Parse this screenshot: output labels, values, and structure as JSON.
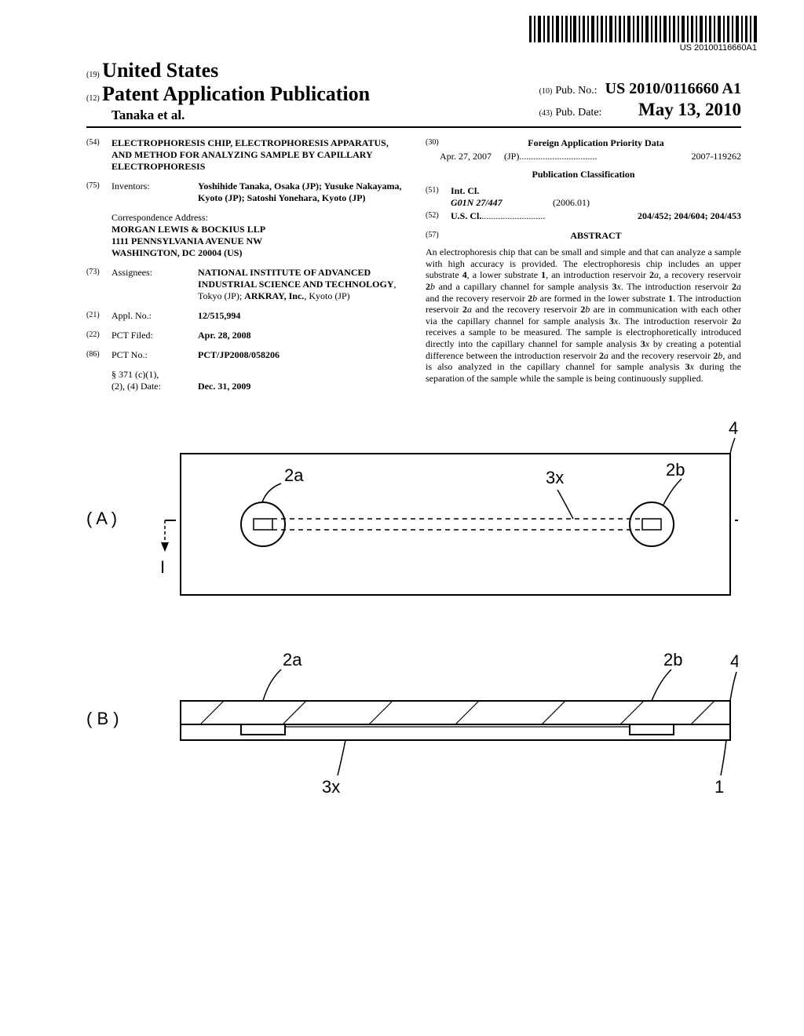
{
  "barcode_text": "US 20100116660A1",
  "header": {
    "country_tag": "(19)",
    "country": "United States",
    "pub_tag": "(12)",
    "pub_title": "Patent Application Publication",
    "authors": "Tanaka et al.",
    "pubno_tag": "(10)",
    "pubno_label": "Pub. No.:",
    "pubno_value": "US 2010/0116660 A1",
    "pubdate_tag": "(43)",
    "pubdate_label": "Pub. Date:",
    "pubdate_value": "May 13, 2010"
  },
  "left": {
    "title_tag": "(54)",
    "title": "ELECTROPHORESIS CHIP, ELECTROPHORESIS APPARATUS, AND METHOD FOR ANALYZING SAMPLE BY CAPILLARY ELECTROPHORESIS",
    "inventors_tag": "(75)",
    "inventors_label": "Inventors:",
    "inventors_value": "Yoshihide Tanaka, Osaka (JP); Yusuke Nakayama, Kyoto (JP); Satoshi Yonehara, Kyoto (JP)",
    "corr_label": "Correspondence Address:",
    "corr_lines": [
      "MORGAN LEWIS & BOCKIUS LLP",
      "1111 PENNSYLVANIA AVENUE NW",
      "WASHINGTON, DC 20004 (US)"
    ],
    "assignees_tag": "(73)",
    "assignees_label": "Assignees:",
    "assignees_html": "NATIONAL INSTITUTE OF ADVANCED INDUSTRIAL SCIENCE AND TECHNOLOGY, Tokyo (JP); ARKRAY, Inc., Kyoto (JP)",
    "applno_tag": "(21)",
    "applno_label": "Appl. No.:",
    "applno_value": "12/515,994",
    "pctfiled_tag": "(22)",
    "pctfiled_label": "PCT Filed:",
    "pctfiled_value": "Apr. 28, 2008",
    "pctno_tag": "(86)",
    "pctno_label": "PCT No.:",
    "pctno_value": "PCT/JP2008/058206",
    "sec371_label": "§ 371 (c)(1),\n(2), (4) Date:",
    "sec371_value": "Dec. 31, 2009"
  },
  "right": {
    "foreign_tag": "(30)",
    "foreign_heading": "Foreign Application Priority Data",
    "foreign_date": "Apr. 27, 2007",
    "foreign_country": "(JP)",
    "foreign_num": "2007-119262",
    "pubclass_heading": "Publication Classification",
    "intcl_tag": "(51)",
    "intcl_label": "Int. Cl.",
    "intcl_code": "G01N 27/447",
    "intcl_date": "(2006.01)",
    "uscl_tag": "(52)",
    "uscl_label": "U.S. Cl.",
    "uscl_value": "204/452; 204/604; 204/453",
    "abstract_tag": "(57)",
    "abstract_heading": "ABSTRACT",
    "abstract_text": "An electrophoresis chip that can be small and simple and that can analyze a sample with high accuracy is provided. The electrophoresis chip includes an upper substrate 4, a lower substrate 1, an introduction reservoir 2a, a recovery reservoir 2b and a capillary channel for sample analysis 3x. The introduction reservoir 2a and the recovery reservoir 2b are formed in the lower substrate 1. The introduction reservoir 2a and the recovery reservoir 2b are in communication with each other via the capillary channel for sample analysis 3x. The introduction reservoir 2a receives a sample to be measured. The sample is electrophoretically introduced directly into the capillary channel for sample analysis 3x by creating a potential difference between the introduction reservoir 2a and the recovery reservoir 2b, and is also analyzed in the capillary channel for sample analysis 3x during the separation of the sample while the sample is being continuously supplied."
  },
  "figure": {
    "label_a": "( A )",
    "label_b": "( B )",
    "ref_2a": "2a",
    "ref_2b": "2b",
    "ref_3x": "3x",
    "ref_4": "4",
    "ref_1": "1",
    "ref_I_left": "I",
    "ref_I_right": "I"
  }
}
